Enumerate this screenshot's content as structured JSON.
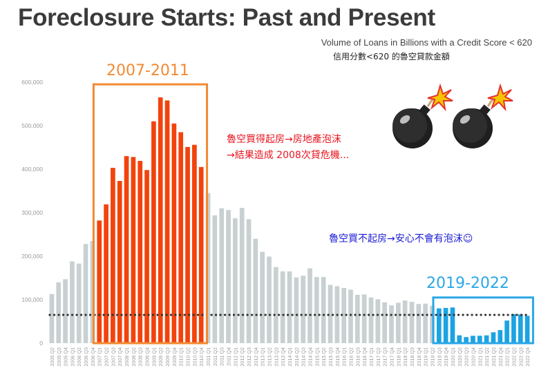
{
  "header": {
    "title": "Foreclosure Starts: Past and Present",
    "subtitle": "Volume of Loans in Billions with a Credit Score < 620",
    "subtitle_zh": "信用分數<620 的魯空貸款金額"
  },
  "annotations": {
    "period1_label": "2007-2011",
    "period2_label": "2019-2022",
    "red_line1": "魯空買得起房→房地產泡沫",
    "red_line2": "→結果造成 2008次貸危機...",
    "blue_line": "魯空買不起房→安心不會有泡沫☺"
  },
  "colors": {
    "gray_bar": "#c8d0d2",
    "red_bar": "#f2430d",
    "blue_bar": "#1ca3e3",
    "period1_box": "#f28a32",
    "period2_box": "#2aa7e6",
    "tick_text": "#999999",
    "dotted_line": "#333333"
  },
  "icons": [
    "bomb-icon",
    "bomb-icon"
  ],
  "chart_data": {
    "type": "bar",
    "ylim": [
      0,
      600000
    ],
    "yticks": [
      {
        "value": 0,
        "label": "0"
      },
      {
        "value": 100000,
        "label": "100,000"
      },
      {
        "value": 200000,
        "label": "200,000"
      },
      {
        "value": 300000,
        "label": "300,000"
      },
      {
        "value": 400000,
        "label": "400,000"
      },
      {
        "value": 500000,
        "label": "500,000"
      },
      {
        "value": 600000,
        "label": "600,000"
      }
    ],
    "reference_line": 65000,
    "categories": [
      "2005 Q2",
      "2005 Q3",
      "2005 Q4",
      "2006 Q1",
      "2006 Q2",
      "2006 Q3",
      "2006 Q4",
      "2007 Q1",
      "2007 Q2",
      "2007 Q3",
      "2007 Q4",
      "2008 Q1",
      "2008 Q2",
      "2008 Q3",
      "2008 Q4",
      "2009 Q1",
      "2009 Q2",
      "2009 Q3",
      "2009 Q4",
      "2010 Q1",
      "2010 Q2",
      "2010 Q3",
      "2010 Q4",
      "2011 Q1",
      "2011 Q2",
      "2011 Q3",
      "2011 Q4",
      "2012 Q1",
      "2012 Q2",
      "2012 Q3",
      "2012 Q4",
      "2013 Q1",
      "2013 Q2",
      "2013 Q3",
      "2013 Q4",
      "2014 Q1",
      "2014 Q2",
      "2014 Q3",
      "2014 Q4",
      "2015 Q1",
      "2015 Q2",
      "2015 Q3",
      "2015 Q4",
      "2016 Q1",
      "2016 Q2",
      "2016 Q3",
      "2016 Q4",
      "2017 Q1",
      "2017 Q2",
      "2017 Q3",
      "2017 Q4",
      "2018 Q1",
      "2018 Q2",
      "2018 Q3",
      "2018 Q4",
      "2019 Q1",
      "2019 Q2",
      "2019 Q3",
      "2019 Q4",
      "2020 Q1",
      "2020 Q2",
      "2020 Q3",
      "2020 Q4",
      "2021 Q1",
      "2021 Q2",
      "2021 Q3",
      "2021 Q4",
      "2022 Q1",
      "2022 Q2",
      "2022 Q3",
      "2022 Q4"
    ],
    "values": [
      113000,
      140000,
      147000,
      188000,
      183000,
      228000,
      235000,
      282000,
      319000,
      403000,
      373000,
      430000,
      428000,
      419000,
      398000,
      510000,
      565000,
      558000,
      505000,
      485000,
      451000,
      456000,
      405000,
      345000,
      294000,
      310000,
      306000,
      287000,
      311000,
      285000,
      240000,
      210000,
      199000,
      175000,
      165000,
      165000,
      151000,
      155000,
      172000,
      152000,
      152000,
      134000,
      131000,
      127000,
      123000,
      111000,
      112000,
      105000,
      101000,
      94000,
      87000,
      93000,
      98000,
      95000,
      90000,
      91000,
      86000,
      80000,
      81000,
      82000,
      18000,
      14000,
      17000,
      17000,
      18000,
      25000,
      30000,
      52000,
      67000,
      66000,
      63000
    ],
    "groups": [
      {
        "name": "gray",
        "from": 0,
        "to": 6
      },
      {
        "name": "red",
        "from": 7,
        "to": 22
      },
      {
        "name": "gray",
        "from": 23,
        "to": 56
      },
      {
        "name": "blue",
        "from": 57,
        "to": 70
      }
    ]
  }
}
